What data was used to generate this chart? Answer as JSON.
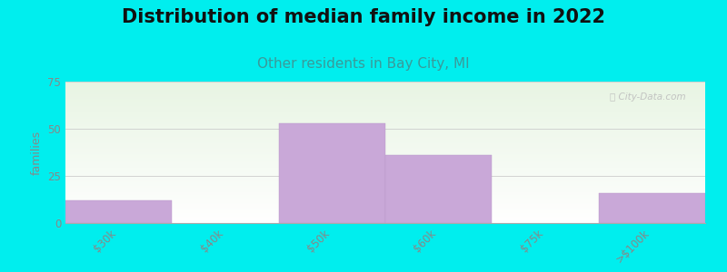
{
  "title": "Distribution of median family income in 2022",
  "subtitle": "Other residents in Bay City, MI",
  "categories": [
    "$30k",
    "$40k",
    "$50k",
    "$60k",
    "$75k",
    ">$100k"
  ],
  "values": [
    12,
    0,
    53,
    36,
    0,
    16
  ],
  "bar_color": "#c9a8d8",
  "bar_edge_color": "#b898c8",
  "ylabel": "families",
  "ylim": [
    0,
    75
  ],
  "yticks": [
    0,
    25,
    50,
    75
  ],
  "background_outer": "#00EEEE",
  "title_fontsize": 15,
  "subtitle_fontsize": 11,
  "subtitle_color": "#3a9a9a",
  "tick_label_color": "#888888",
  "ylabel_color": "#888888",
  "watermark_text": "ⓘ City-Data.com",
  "watermark_color": "#bbbbbb",
  "grid_color": "#cccccc"
}
